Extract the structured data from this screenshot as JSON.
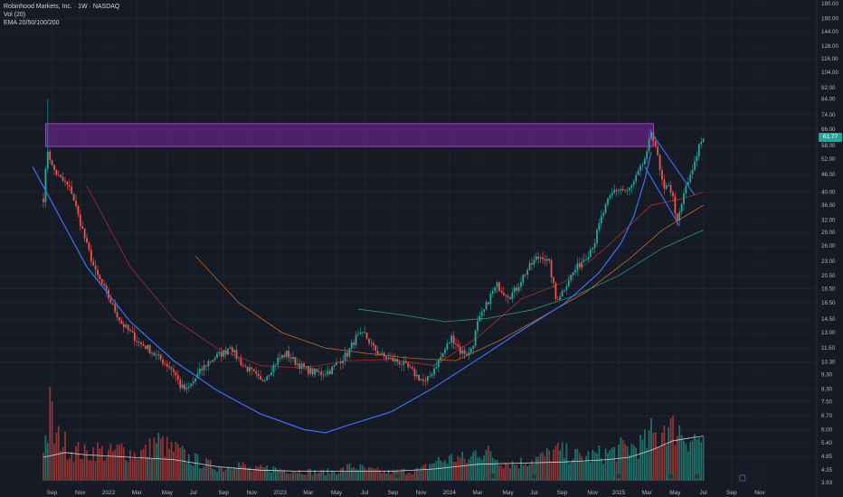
{
  "legend": {
    "title": "Robinhood Markets, Inc. · 1W · NASDAQ",
    "volume": "Vol (20)",
    "ema": "EMA 20/50/100/200"
  },
  "last_price_label": "61.77",
  "colors": {
    "background": "#161a25",
    "grid": "#232733",
    "up": "#26a69a",
    "down": "#ef5350",
    "vol_up": "#1f6f68",
    "vol_down": "#8e3434",
    "cup_line": "#3d6ff0",
    "resistance_zone": "#8e2bbf",
    "axis_text": "#b2b5be",
    "ema20": "#a72d2d",
    "ema50": "#c0672a",
    "ema100": "#2a9a7a",
    "vol_ma": "#d1d4dc"
  },
  "chart_data": {
    "type": "candlestick",
    "title": "Robinhood Markets, Inc. · 1W · NASDAQ",
    "y_scale": "log",
    "ylim": [
      3.93,
      180
    ],
    "y_ticks": [
      180,
      160,
      144,
      128,
      116,
      104,
      92,
      84,
      74,
      66,
      58,
      52,
      46,
      40,
      36,
      32,
      29,
      26,
      23,
      20.5,
      18.5,
      16.5,
      14.5,
      13,
      11.5,
      10.3,
      9.3,
      8.3,
      7.5,
      6.7,
      6.0,
      5.4,
      4.85,
      4.35,
      3.93
    ],
    "y_tick_labels": [
      "180.00",
      "160.00",
      "144.00",
      "128.00",
      "116.00",
      "104.00",
      "92.00",
      "84.00",
      "74.00",
      "66.00",
      "58.00",
      "52.00",
      "46.00",
      "40.00",
      "36.00",
      "32.00",
      "29.00",
      "26.00",
      "23.00",
      "20.50",
      "18.50",
      "16.50",
      "14.50",
      "13.00",
      "11.50",
      "10.30",
      "9.30",
      "8.30",
      "7.50",
      "6.70",
      "6.00",
      "5.40",
      "4.85",
      "4.35",
      "3.93"
    ],
    "x_ticks": [
      "Sep",
      "Nov",
      "2022",
      "Mar",
      "May",
      "Jul",
      "Sep",
      "Nov",
      "2023",
      "Mar",
      "May",
      "Jul",
      "Sep",
      "Nov",
      "2024",
      "Mar",
      "May",
      "Jul",
      "Sep",
      "Nov",
      "2025",
      "Mar",
      "May",
      "Jul",
      "Sep",
      "Nov"
    ],
    "price_path": [
      [
        0,
        38
      ],
      [
        2,
        56
      ],
      [
        4,
        49
      ],
      [
        7,
        45
      ],
      [
        10,
        43
      ],
      [
        13,
        40
      ],
      [
        16,
        33
      ],
      [
        20,
        26
      ],
      [
        24,
        21
      ],
      [
        28,
        18.5
      ],
      [
        32,
        16
      ],
      [
        36,
        14
      ],
      [
        40,
        13
      ],
      [
        44,
        12
      ],
      [
        48,
        11.5
      ],
      [
        52,
        10.8
      ],
      [
        56,
        10.2
      ],
      [
        60,
        9.6
      ],
      [
        63,
        8.5
      ],
      [
        66,
        8.2
      ],
      [
        69,
        8.8
      ],
      [
        72,
        9.5
      ],
      [
        76,
        10.3
      ],
      [
        80,
        10.8
      ],
      [
        84,
        11.2
      ],
      [
        86,
        11.8
      ],
      [
        88,
        11.0
      ],
      [
        92,
        10.0
      ],
      [
        96,
        9.5
      ],
      [
        100,
        8.8
      ],
      [
        104,
        9.5
      ],
      [
        108,
        10.5
      ],
      [
        112,
        11.0
      ],
      [
        116,
        10.3
      ],
      [
        120,
        9.8
      ],
      [
        124,
        9.5
      ],
      [
        128,
        9.4
      ],
      [
        132,
        9.6
      ],
      [
        136,
        10.3
      ],
      [
        140,
        11.0
      ],
      [
        144,
        12.5
      ],
      [
        148,
        12.8
      ],
      [
        152,
        11.5
      ],
      [
        156,
        10.8
      ],
      [
        160,
        10.5
      ],
      [
        164,
        10.3
      ],
      [
        168,
        9.8
      ],
      [
        172,
        9.2
      ],
      [
        176,
        8.7
      ],
      [
        178,
        9.2
      ],
      [
        180,
        9.8
      ],
      [
        184,
        11.0
      ],
      [
        188,
        12.5
      ],
      [
        190,
        12.0
      ],
      [
        192,
        11.2
      ],
      [
        196,
        11.0
      ],
      [
        198,
        12.0
      ],
      [
        200,
        14.0
      ],
      [
        203,
        15.5
      ],
      [
        206,
        17.5
      ],
      [
        209,
        19.0
      ],
      [
        212,
        18.0
      ],
      [
        215,
        17.5
      ],
      [
        218,
        18.5
      ],
      [
        221,
        20.5
      ],
      [
        224,
        22.0
      ],
      [
        227,
        23.5
      ],
      [
        230,
        24.0
      ],
      [
        233,
        22.5
      ],
      [
        236,
        17.0
      ],
      [
        239,
        18.0
      ],
      [
        242,
        20.0
      ],
      [
        245,
        21.5
      ],
      [
        248,
        23.0
      ],
      [
        251,
        24.5
      ],
      [
        254,
        27.0
      ],
      [
        257,
        32.5
      ],
      [
        260,
        37.0
      ],
      [
        263,
        40.5
      ],
      [
        266,
        41.0
      ],
      [
        269,
        40.0
      ],
      [
        272,
        43.0
      ],
      [
        275,
        48.0
      ],
      [
        278,
        54.0
      ],
      [
        280,
        65.0
      ],
      [
        282,
        58.0
      ],
      [
        284,
        47.0
      ],
      [
        286,
        40.0
      ],
      [
        288,
        43.0
      ],
      [
        290,
        38.0
      ],
      [
        292,
        31.0
      ],
      [
        294,
        36.0
      ],
      [
        296,
        42.0
      ],
      [
        298,
        45.0
      ],
      [
        300,
        50.0
      ],
      [
        302,
        58.0
      ],
      [
        304,
        61.77
      ]
    ],
    "volume_bars": [
      [
        0,
        35
      ],
      [
        2,
        45
      ],
      [
        3,
        80
      ],
      [
        4,
        60
      ],
      [
        5,
        40
      ],
      [
        8,
        40
      ],
      [
        12,
        30
      ],
      [
        16,
        28
      ],
      [
        20,
        25
      ],
      [
        24,
        30
      ],
      [
        30,
        25
      ],
      [
        36,
        30
      ],
      [
        42,
        25
      ],
      [
        48,
        28
      ],
      [
        52,
        38
      ],
      [
        58,
        30
      ],
      [
        62,
        28
      ],
      [
        66,
        22
      ],
      [
        72,
        18
      ],
      [
        78,
        14
      ],
      [
        84,
        12
      ],
      [
        88,
        18
      ],
      [
        96,
        10
      ],
      [
        104,
        12
      ],
      [
        112,
        10
      ],
      [
        120,
        9
      ],
      [
        128,
        8
      ],
      [
        136,
        9
      ],
      [
        142,
        14
      ],
      [
        150,
        10
      ],
      [
        158,
        8
      ],
      [
        166,
        9
      ],
      [
        174,
        10
      ],
      [
        180,
        18
      ],
      [
        186,
        20
      ],
      [
        190,
        22
      ],
      [
        196,
        19
      ],
      [
        200,
        30
      ],
      [
        206,
        25
      ],
      [
        212,
        18
      ],
      [
        218,
        16
      ],
      [
        224,
        20
      ],
      [
        230,
        22
      ],
      [
        236,
        28
      ],
      [
        242,
        25
      ],
      [
        248,
        22
      ],
      [
        254,
        24
      ],
      [
        260,
        26
      ],
      [
        266,
        30
      ],
      [
        272,
        32
      ],
      [
        278,
        36
      ],
      [
        280,
        44
      ],
      [
        284,
        40
      ],
      [
        286,
        55
      ],
      [
        288,
        48
      ],
      [
        292,
        50
      ],
      [
        296,
        42
      ],
      [
        300,
        40
      ],
      [
        304,
        38
      ]
    ],
    "resistance_zone": [
      57.5,
      69
    ],
    "cup_line": [
      [
        -5,
        49
      ],
      [
        20,
        22
      ],
      [
        40,
        14.2
      ],
      [
        60,
        10.4
      ],
      [
        80,
        8.2
      ],
      [
        100,
        6.8
      ],
      [
        120,
        6.0
      ],
      [
        130,
        5.85
      ],
      [
        140,
        6.2
      ],
      [
        160,
        6.9
      ],
      [
        180,
        8.4
      ],
      [
        200,
        10.5
      ],
      [
        220,
        13.2
      ],
      [
        240,
        16.4
      ],
      [
        256,
        21
      ],
      [
        266,
        26.5
      ],
      [
        272,
        33
      ],
      [
        277,
        44
      ],
      [
        280,
        55
      ]
    ],
    "wedge_lines": [
      [
        [
          279,
          66
        ],
        [
          300,
          39
        ]
      ],
      [
        [
          277,
          49
        ],
        [
          293,
          30.5
        ]
      ]
    ],
    "ema_lines": [
      {
        "name": "EMA 20",
        "points": [
          [
            20,
            42
          ],
          [
            40,
            22
          ],
          [
            60,
            14.5
          ],
          [
            80,
            11.5
          ],
          [
            100,
            10.0
          ],
          [
            120,
            9.8
          ],
          [
            140,
            10.4
          ],
          [
            160,
            10.5
          ],
          [
            180,
            10.0
          ],
          [
            200,
            12.5
          ],
          [
            220,
            17.0
          ],
          [
            240,
            19.5
          ],
          [
            260,
            26
          ],
          [
            280,
            36
          ],
          [
            295,
            38
          ],
          [
            304,
            40
          ]
        ]
      },
      {
        "name": "EMA 50",
        "points": [
          [
            70,
            24
          ],
          [
            90,
            16.5
          ],
          [
            110,
            13.0
          ],
          [
            130,
            11.5
          ],
          [
            150,
            11.0
          ],
          [
            170,
            10.6
          ],
          [
            190,
            10.4
          ],
          [
            210,
            12.2
          ],
          [
            230,
            14.8
          ],
          [
            250,
            18.0
          ],
          [
            270,
            23.5
          ],
          [
            285,
            29.5
          ],
          [
            304,
            36
          ]
        ]
      },
      {
        "name": "EMA 100",
        "points": [
          [
            145,
            15.7
          ],
          [
            165,
            15.0
          ],
          [
            185,
            14.2
          ],
          [
            205,
            14.6
          ],
          [
            225,
            15.6
          ],
          [
            245,
            17.5
          ],
          [
            265,
            20.5
          ],
          [
            285,
            25.5
          ],
          [
            304,
            29.5
          ]
        ]
      }
    ],
    "vol_ma": [
      [
        0,
        20
      ],
      [
        10,
        24
      ],
      [
        20,
        22
      ],
      [
        40,
        20
      ],
      [
        60,
        18
      ],
      [
        80,
        12
      ],
      [
        100,
        9
      ],
      [
        120,
        8
      ],
      [
        140,
        8
      ],
      [
        160,
        8
      ],
      [
        180,
        10
      ],
      [
        200,
        14
      ],
      [
        220,
        15
      ],
      [
        240,
        16
      ],
      [
        260,
        18
      ],
      [
        270,
        20
      ],
      [
        280,
        26
      ],
      [
        290,
        34
      ],
      [
        300,
        37
      ],
      [
        304,
        38
      ]
    ],
    "vol_max": 100
  }
}
